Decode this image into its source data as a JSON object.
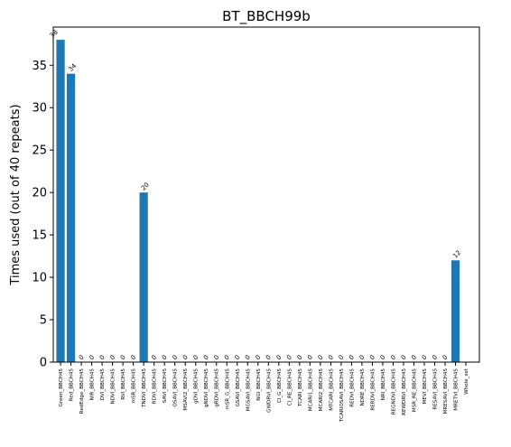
{
  "chart_data": {
    "type": "bar",
    "title": "BT_BBCH99b",
    "xlabel": "",
    "ylabel": "Times used (out of 40 repeats)",
    "ylim": [
      0,
      39.5
    ],
    "yticks": [
      0,
      5,
      10,
      15,
      20,
      25,
      30,
      35
    ],
    "grid": false,
    "bar_color": "#1f77b4",
    "categories": [
      "Green_BBCH45",
      "Red_BBCH45",
      "RedEdge_BBCH45",
      "NIR_BBCH45",
      "DVI_BBCH45",
      "NDVI_BBCH45",
      "RVI_BBCH45",
      "mSR_BBCH45",
      "TNDVI_BBCH45",
      "RDVI_BBCH45",
      "SAVI_BBCH45",
      "OSAVI_BBCH45",
      "MSAVI2_BBCH45",
      "gDVI_BBCH45",
      "gNDVI_BBCH45",
      "gRDVI_BBCH45",
      "mSR_G_BBCH45",
      "GSAVI_BBCH45",
      "MGSAVI_BBCH45",
      "NGI_BBCH45",
      "GWDRVI_BBCH45",
      "CI_G_BBCH45",
      "CI_RE_BBCH45",
      "TCARI_BBCH45",
      "MCARI1_BBCH45",
      "MCARI2_BBCH45",
      "MTCARI_BBCH45",
      "TCARIOSAVI_BBCH45",
      "REDVI_BBCH45",
      "NDRE_BBCH45",
      "RERDVI_BBCH45",
      "NRI_BBCH45",
      "REGNDVI_BBCH45",
      "REWDRVI_BBCH45",
      "MSR_RE_BBCH45",
      "MEVI_BBCH45",
      "RESAVI_BBCH45",
      "MRESAVI_BBCH45",
      "MRETVI_BBCH45",
      "Whole_set"
    ],
    "values": [
      38,
      34,
      0,
      0,
      0,
      0,
      0,
      0,
      20,
      0,
      0,
      0,
      0,
      0,
      0,
      0,
      0,
      0,
      0,
      0,
      0,
      0,
      0,
      0,
      0,
      0,
      0,
      0,
      0,
      0,
      0,
      0,
      0,
      0,
      0,
      0,
      0,
      0,
      12,
      0
    ],
    "data_labels": [
      "38",
      "34",
      "0",
      "0",
      "0",
      "0",
      "0",
      "0",
      "20",
      "0",
      "0",
      "0",
      "0",
      "0",
      "0",
      "0",
      "0",
      "0",
      "0",
      "0",
      "0",
      "0",
      "0",
      "0",
      "0",
      "0",
      "0",
      "0",
      "0",
      "0",
      "0",
      "0",
      "0",
      "0",
      "0",
      "0",
      "0",
      "0",
      "12",
      ""
    ],
    "first_label_offset_left": true
  }
}
